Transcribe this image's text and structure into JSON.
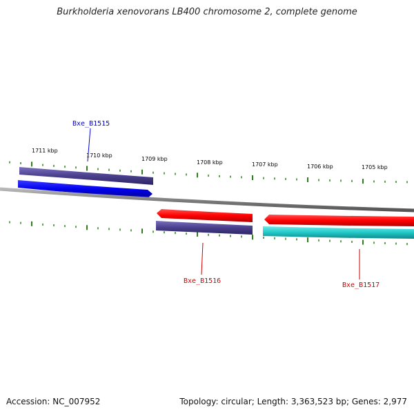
{
  "title": "Burkholderia xenovorans LB400 chromosome 2, complete genome",
  "footer": {
    "accession": "Accession: NC_007952",
    "summary": "Topology: circular; Length: 3,363,523 bp; Genes: 2,977"
  },
  "kbp_labels": [
    "1711 kbp",
    "1710 kbp",
    "1709 kbp",
    "1708 kbp",
    "1707 kbp",
    "1706 kbp",
    "1705 kbp"
  ],
  "genes": [
    {
      "label": "Bxe_B1515",
      "color": "#0000cc"
    },
    {
      "label": "Bxe_B1516",
      "color": "#cc0000"
    },
    {
      "label": "Bxe_B1517",
      "color": "#cc0000"
    }
  ],
  "colors": {
    "blue_feature": "#0000ee",
    "navy_feature": "#4a3f8c",
    "red_feature": "#ff0000",
    "teal_feature": "#20c8c8",
    "backbone": "#808080",
    "ticks": "#2e7d1e"
  }
}
